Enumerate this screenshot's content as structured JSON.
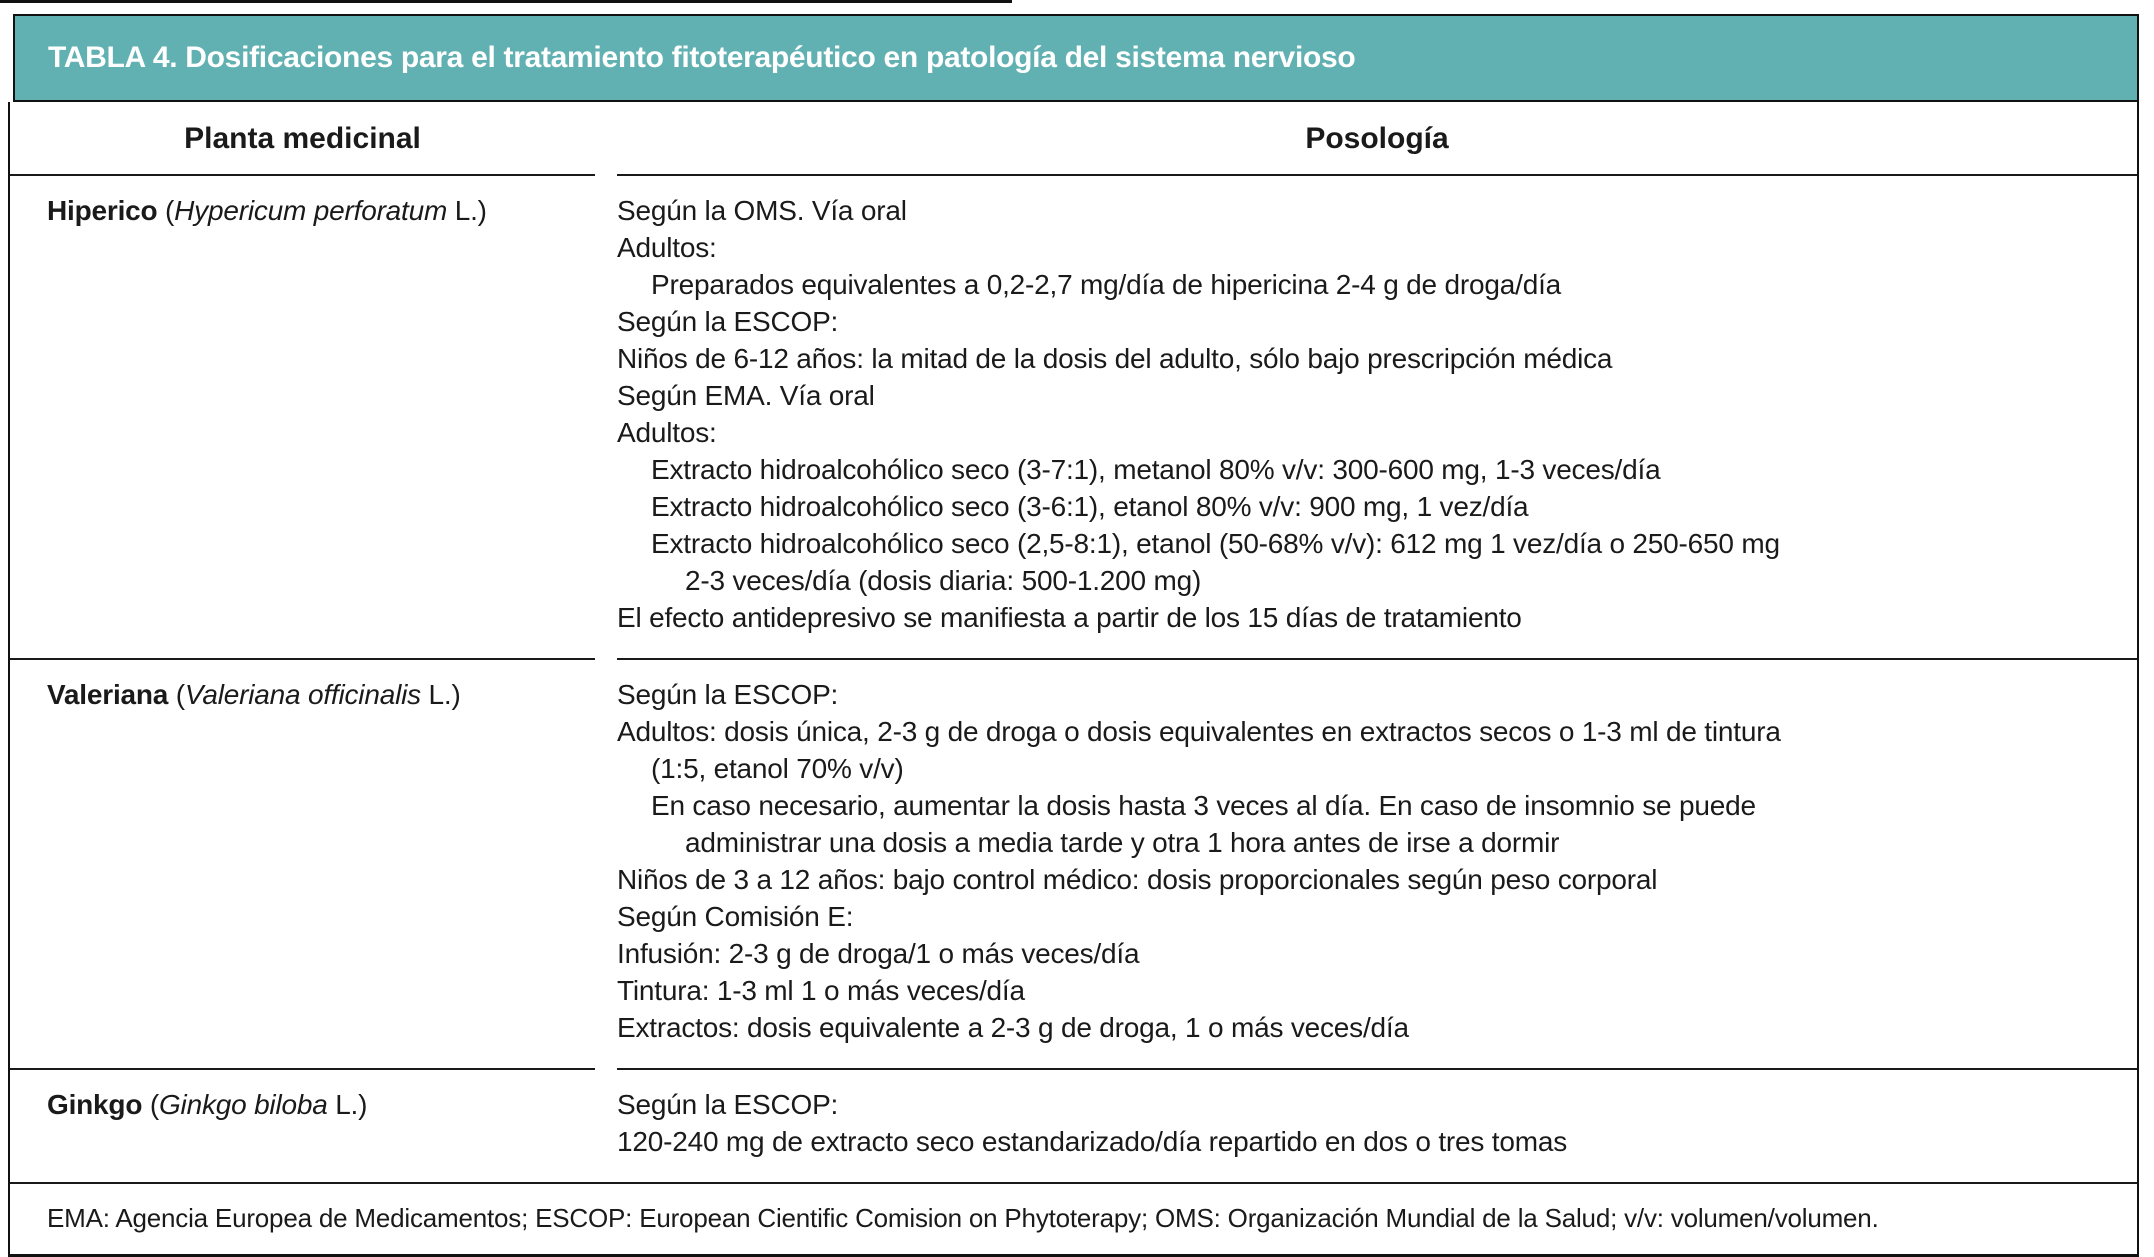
{
  "accent_color": "#62b1b2",
  "table": {
    "title": "TABLA 4. Dosificaciones para el tratamiento fitoterapéutico en patología del sistema nervioso",
    "columns": {
      "plant": "Planta medicinal",
      "dosage": "Posología"
    },
    "rows": [
      {
        "plant": {
          "name": "Hiperico",
          "sep": " (",
          "species": "Hypericum perforatum",
          "suffix": " L.)"
        },
        "lines": [
          {
            "text": "Según la OMS. Vía oral",
            "indent": 0
          },
          {
            "text": "Adultos:",
            "indent": 0
          },
          {
            "text": "Preparados equivalentes a 0,2-2,7 mg/día de hipericina 2-4 g de droga/día",
            "indent": 1
          },
          {
            "text": "Según la ESCOP:",
            "indent": 0
          },
          {
            "text": "Niños de 6-12 años: la mitad de la dosis del adulto, sólo bajo prescripción médica",
            "indent": 0
          },
          {
            "text": "Según EMA. Vía oral",
            "indent": 0
          },
          {
            "text": "Adultos:",
            "indent": 0
          },
          {
            "text": "Extracto hidroalcohólico seco (3-7:1), metanol 80% v/v: 300-600 mg, 1-3 veces/día",
            "indent": 1
          },
          {
            "text": "Extracto hidroalcohólico seco (3-6:1), etanol 80% v/v: 900 mg, 1 vez/día",
            "indent": 1
          },
          {
            "text": "Extracto hidroalcohólico seco (2,5-8:1), etanol (50-68% v/v): 612 mg 1 vez/día o 250-650 mg",
            "indent": 1
          },
          {
            "text": "2-3 veces/día (dosis diaria: 500-1.200 mg)",
            "indent": 2
          },
          {
            "text": "El efecto antidepresivo se manifiesta a partir de los 15 días de tratamiento",
            "indent": 0
          }
        ]
      },
      {
        "plant": {
          "name": "Valeriana",
          "sep": " (",
          "species": "Valeriana officinalis",
          "suffix": " L.)"
        },
        "lines": [
          {
            "text": "Según la ESCOP:",
            "indent": 0
          },
          {
            "text": "Adultos: dosis única, 2-3 g de droga o dosis equivalentes en extractos secos o 1-3 ml de tintura",
            "indent": 0
          },
          {
            "text": "(1:5, etanol 70% v/v)",
            "indent": 1
          },
          {
            "text": "En caso necesario, aumentar la dosis hasta 3 veces al día. En caso de insomnio se puede",
            "indent": 1
          },
          {
            "text": "administrar una dosis a media tarde y otra 1 hora antes de irse a dormir",
            "indent": 2
          },
          {
            "text": "Niños de 3 a 12 años: bajo control médico: dosis proporcionales según peso corporal",
            "indent": 0
          },
          {
            "text": "Según Comisión E:",
            "indent": 0
          },
          {
            "text": "Infusión: 2-3 g de droga/1 o más veces/día",
            "indent": 0
          },
          {
            "text": "Tintura: 1-3 ml 1 o más veces/día",
            "indent": 0
          },
          {
            "text": "Extractos: dosis equivalente a 2-3 g de droga, 1 o más veces/día",
            "indent": 0
          }
        ]
      },
      {
        "plant": {
          "name": "Ginkgo",
          "sep": " (",
          "species": "Ginkgo biloba",
          "suffix": " L.)"
        },
        "lines": [
          {
            "text": "Según la ESCOP:",
            "indent": 0
          },
          {
            "text": "120-240 mg de extracto seco estandarizado/día repartido en dos o tres tomas",
            "indent": 0
          }
        ]
      }
    ],
    "footnote": "EMA: Agencia Europea de Medicamentos; ESCOP: European Cientific Comision on Phytoterapy; OMS: Organización Mundial de la Salud; v/v: volumen/volumen."
  }
}
